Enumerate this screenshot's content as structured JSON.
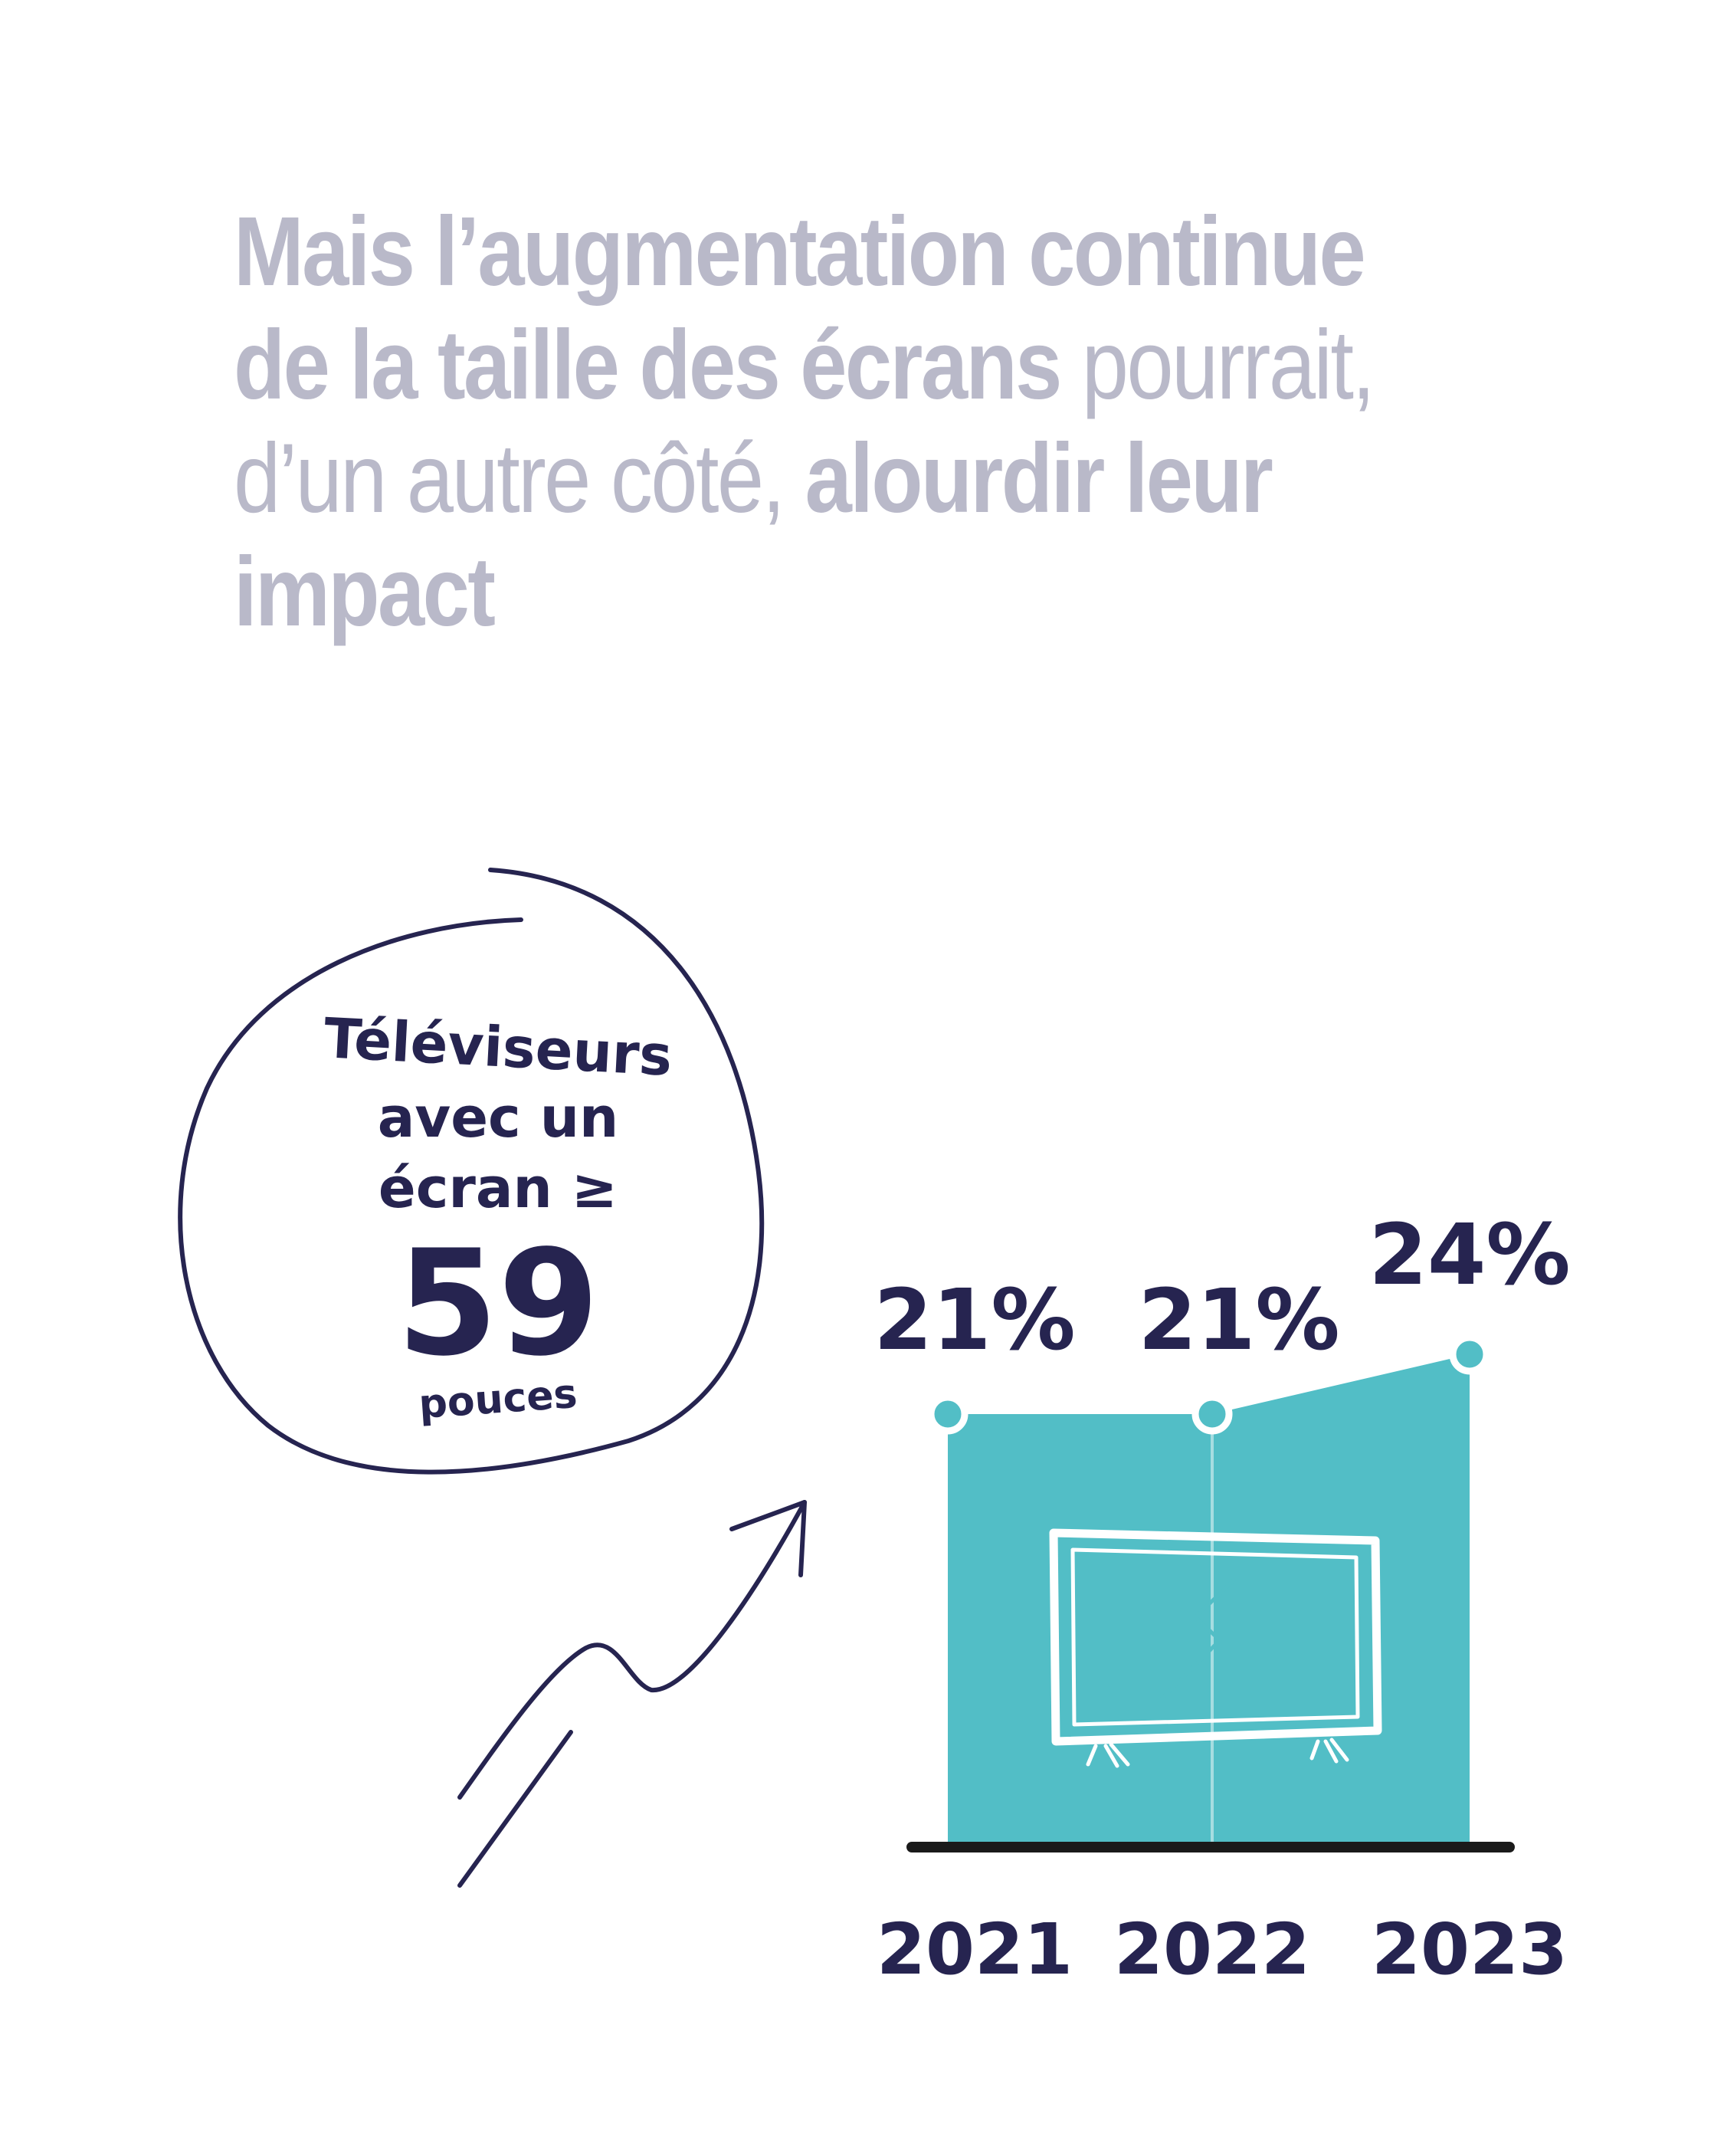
{
  "headline": {
    "part1_bold": "Mais l’augmentation continue de la taille des écrans",
    "part2_light": " pourrait, d’un autre côté, ",
    "part3_bold": "alourdir leur impact"
  },
  "bubble": {
    "line1": "Téléviseurs",
    "line2": "avec un",
    "line3": "écran ≥",
    "number": "59",
    "unit": "pouces"
  },
  "colors": {
    "navy": "#262450",
    "teal": "#52bec6",
    "gray": "#b9b9c9"
  },
  "chart_data": {
    "type": "area",
    "title": "Téléviseurs avec un écran ≥ 59 pouces",
    "categories": [
      "2021",
      "2022",
      "2023"
    ],
    "values": [
      21,
      21,
      24
    ],
    "value_labels": [
      "21%",
      "21%",
      "24%"
    ],
    "unit": "%",
    "icon": "television-icon"
  }
}
